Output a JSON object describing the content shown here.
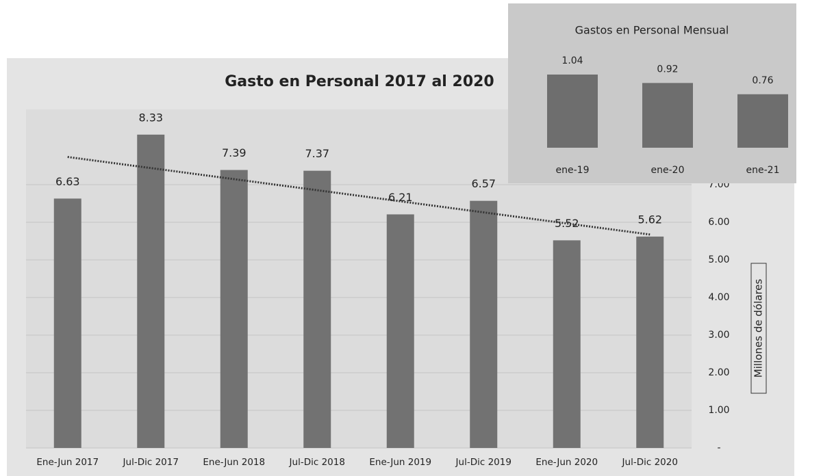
{
  "chart_data": [
    {
      "type": "bar",
      "title": "Gasto en Personal 2017 al 2020",
      "categories": [
        "Ene-Jun 2017",
        "Jul-Dic 2017",
        "Ene-Jun 2018",
        "Jul-Dic 2018",
        "Ene-Jun 2019",
        "Jul-Dic 2019",
        "Ene-Jun 2020",
        "Jul-Dic 2020"
      ],
      "values": [
        6.63,
        8.33,
        7.39,
        7.37,
        6.21,
        6.57,
        5.52,
        5.62
      ],
      "color": "#727272",
      "y_label": "Millones de dólares",
      "ylim": [
        0,
        9
      ],
      "yticks": [
        {
          "value": 0,
          "label": "-"
        },
        {
          "value": 1,
          "label": "1.00"
        },
        {
          "value": 2,
          "label": "2.00"
        },
        {
          "value": 3,
          "label": "3.00"
        },
        {
          "value": 4,
          "label": "4.00"
        },
        {
          "value": 5,
          "label": "5.00"
        },
        {
          "value": 6,
          "label": "6.00"
        },
        {
          "value": 7,
          "label": "7.00"
        }
      ],
      "grid": true,
      "trendline": "linear",
      "y_axis_side": "right"
    },
    {
      "type": "bar",
      "title": "Gastos en Personal Mensual",
      "categories": [
        "ene-19",
        "ene-20",
        "ene-21"
      ],
      "values": [
        1.04,
        0.92,
        0.76
      ],
      "color": "#6e6e6e"
    }
  ]
}
